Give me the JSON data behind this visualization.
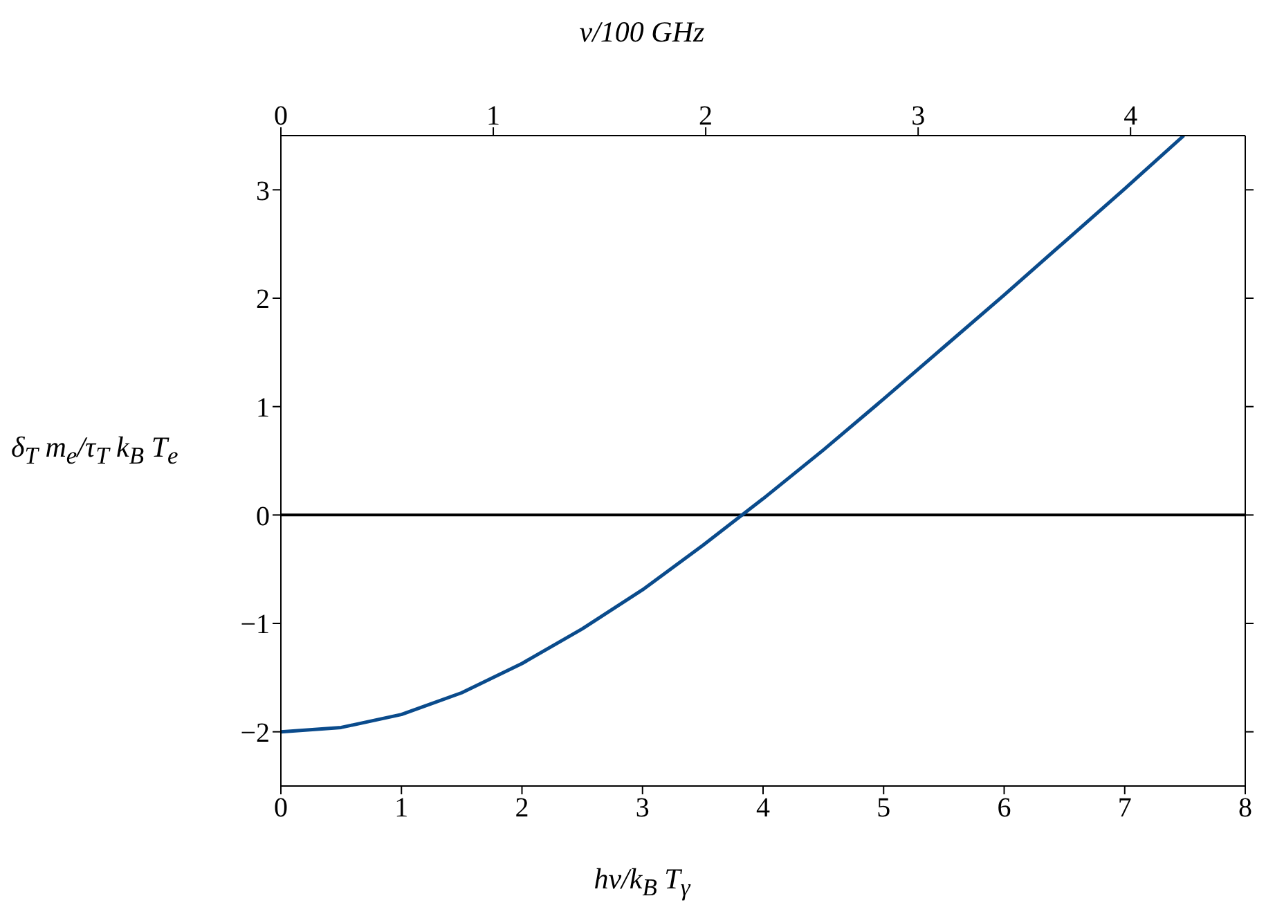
{
  "chart_data": {
    "type": "line",
    "xlabel": "hν/k$_{B}$ T$_{γ}$",
    "ylabel": "δ$_{T}$ m$_{e}$/τ$_{T}$ k$_{B}$ T$_{e}$",
    "x2label": "ν/100 GHz",
    "x": [
      0,
      0.5,
      1,
      1.5,
      2,
      2.5,
      3,
      3.5,
      4,
      4.5,
      5,
      5.5,
      6,
      6.5,
      7,
      7.49
    ],
    "series": [
      {
        "color": "#0a4b8c",
        "values": [
          -2,
          -1.96,
          -1.84,
          -1.64,
          -1.37,
          -1.05,
          -0.69,
          -0.28,
          0.15,
          0.6,
          1.07,
          1.55,
          2.03,
          2.52,
          3.01,
          3.5
        ]
      }
    ],
    "xlim": [
      0,
      8
    ],
    "xticks": [
      0,
      1,
      2,
      3,
      4,
      5,
      6,
      7,
      8
    ],
    "x2lim": [
      0,
      4.54
    ],
    "x2ticks": [
      0,
      1,
      2,
      3,
      4
    ],
    "ylim": [
      -2.5,
      3.5
    ],
    "yticks": [
      {
        "value": -2,
        "label": "−2"
      },
      {
        "value": -1,
        "label": "−1"
      },
      0,
      1,
      2,
      3
    ],
    "ref_lines": [
      {
        "axis": "y",
        "value": 0,
        "color": "#000000"
      }
    ],
    "grid": false,
    "legend": false,
    "marker": "none",
    "line_style": "solid"
  }
}
